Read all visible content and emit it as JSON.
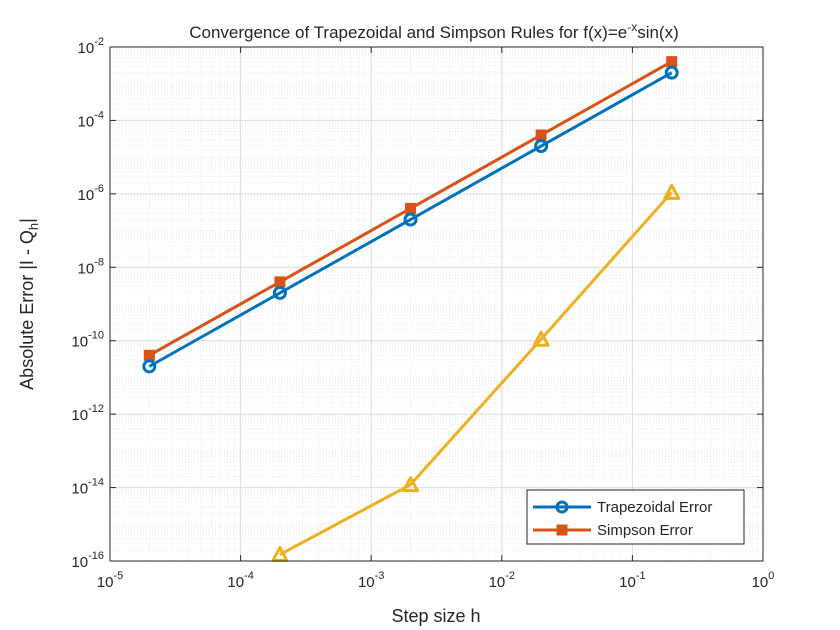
{
  "chart_data": {
    "type": "line",
    "title": {
      "prefix": "Convergence of Trapezoidal and Simpson Rules for f(x)=e",
      "superscript": "-x",
      "suffix": "sin(x)"
    },
    "xlabel": "Step size h",
    "ylabel": {
      "main": "Absolute Error |I - Q",
      "subscript": "h",
      "end": "|"
    },
    "xscale": "log",
    "yscale": "log",
    "xlim": [
      1e-05,
      1
    ],
    "ylim": [
      1e-16,
      0.01
    ],
    "grid": true,
    "minor_grid": true,
    "legend_position": "bottom-right",
    "x_ticks": [
      {
        "base": "10",
        "exp": "-5",
        "value": 1e-05
      },
      {
        "base": "10",
        "exp": "-4",
        "value": 0.0001
      },
      {
        "base": "10",
        "exp": "-3",
        "value": 0.001
      },
      {
        "base": "10",
        "exp": "-2",
        "value": 0.01
      },
      {
        "base": "10",
        "exp": "-1",
        "value": 0.1
      },
      {
        "base": "10",
        "exp": "0",
        "value": 1
      }
    ],
    "y_ticks": [
      {
        "base": "10",
        "exp": "-16",
        "value": 1e-16
      },
      {
        "base": "10",
        "exp": "-14",
        "value": 1e-14
      },
      {
        "base": "10",
        "exp": "-12",
        "value": 1e-12
      },
      {
        "base": "10",
        "exp": "-10",
        "value": 1e-10
      },
      {
        "base": "10",
        "exp": "-8",
        "value": 1e-08
      },
      {
        "base": "10",
        "exp": "-6",
        "value": 1e-06
      },
      {
        "base": "10",
        "exp": "-4",
        "value": 0.0001
      },
      {
        "base": "10",
        "exp": "-2",
        "value": 0.01
      }
    ],
    "series": [
      {
        "name": "Trapezoidal Error",
        "in_legend": true,
        "color": "#0072BD",
        "marker": "circle",
        "x": [
          2e-05,
          0.0002,
          0.002,
          0.02,
          0.2
        ],
        "y": [
          2e-11,
          2e-09,
          2e-07,
          2e-05,
          0.002
        ]
      },
      {
        "name": "Simpson Error",
        "in_legend": true,
        "color": "#D95319",
        "marker": "square",
        "x": [
          2e-05,
          0.0002,
          0.002,
          0.02,
          0.2
        ],
        "y": [
          4e-11,
          4e-09,
          4e-07,
          4e-05,
          0.004
        ]
      },
      {
        "name": "",
        "in_legend": false,
        "color": "#EDB120",
        "marker": "triangle",
        "x": [
          0.0002,
          0.002,
          0.02,
          0.2
        ],
        "y": [
          1.5e-16,
          1.2e-14,
          1.1e-10,
          1.1e-06
        ]
      }
    ]
  }
}
